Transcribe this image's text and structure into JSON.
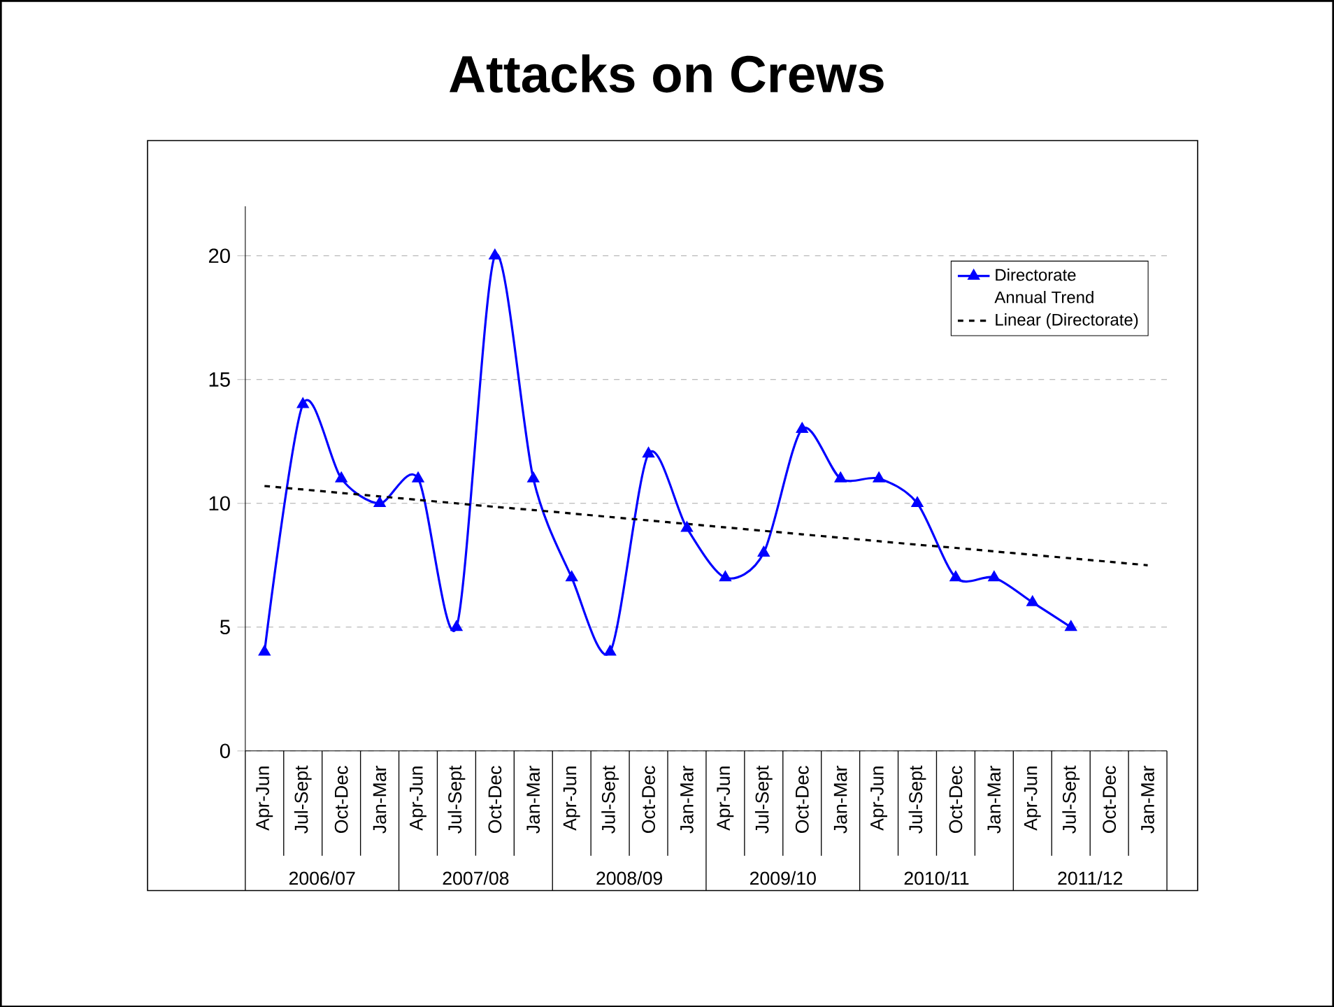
{
  "chart_data": {
    "type": "line",
    "title": "Attacks on Crews",
    "categories": [
      "Apr-Jun",
      "Jul-Sept",
      "Oct-Dec",
      "Jan-Mar",
      "Apr-Jun",
      "Jul-Sept",
      "Oct-Dec",
      "Jan-Mar",
      "Apr-Jun",
      "Jul-Sept",
      "Oct-Dec",
      "Jan-Mar",
      "Apr-Jun",
      "Jul-Sept",
      "Oct-Dec",
      "Jan-Mar",
      "Apr-Jun",
      "Jul-Sept",
      "Oct-Dec",
      "Jan-Mar",
      "Apr-Jun",
      "Jul-Sept",
      "Oct-Dec",
      "Jan-Mar"
    ],
    "series": [
      {
        "name": "Directorate",
        "color": "#0000ff",
        "marker": "triangle",
        "line_style": "solid",
        "values": [
          4,
          14,
          11,
          10,
          11,
          5,
          20,
          11,
          7,
          4,
          12,
          9,
          7,
          8,
          13,
          11,
          11,
          10,
          7,
          7,
          6,
          5,
          null,
          null
        ]
      },
      {
        "name": "Linear (Directorate)",
        "color": "#000000",
        "marker": "none",
        "line_style": "dashed",
        "values": [
          10.7,
          10.56,
          10.42,
          10.28,
          10.14,
          10.0,
          9.86,
          9.73,
          9.59,
          9.45,
          9.31,
          9.17,
          9.03,
          8.89,
          8.75,
          8.61,
          8.47,
          8.33,
          8.2,
          8.06,
          7.92,
          7.78,
          7.64,
          7.5
        ]
      }
    ],
    "annotations": [
      "Annual Trend",
      "2006/07",
      "2007/08",
      "2008/09",
      "2009/10",
      "2010/11",
      "2011/12"
    ],
    "ylim": [
      0,
      22
    ],
    "yticks": [
      0,
      5,
      10,
      15,
      20
    ],
    "grid": "y",
    "legend": "top right"
  }
}
